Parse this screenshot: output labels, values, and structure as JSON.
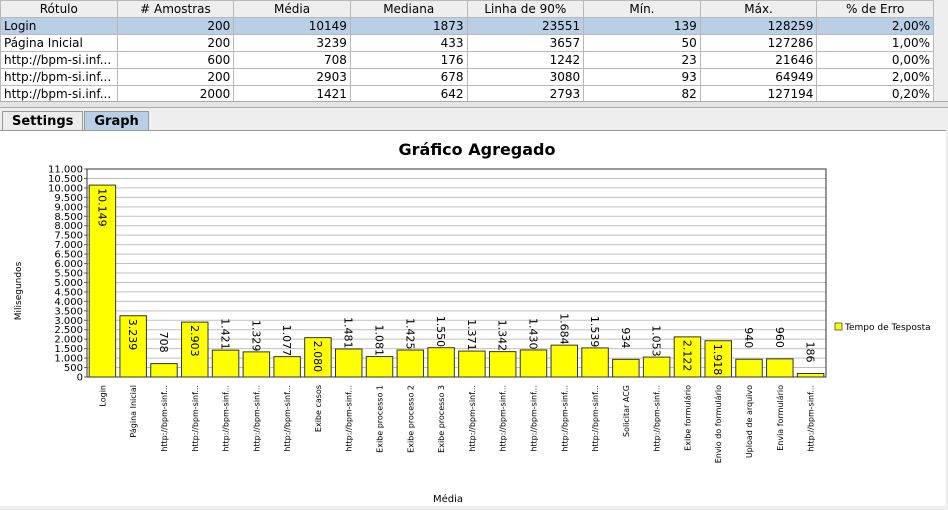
{
  "table": {
    "headers": [
      "Rótulo",
      "# Amostras",
      "Média",
      "Mediana",
      "Linha de 90%",
      "Mín.",
      "Máx.",
      "% de Erro"
    ],
    "rows": [
      [
        "Login",
        200,
        10149,
        1873,
        23551,
        139,
        128259,
        "2,00%"
      ],
      [
        "Página Inicial",
        200,
        3239,
        433,
        3657,
        50,
        127286,
        "1,00%"
      ],
      [
        "http://bpm-si.inf...",
        600,
        708,
        176,
        1242,
        23,
        21646,
        "0,00%"
      ],
      [
        "http://bpm-si.inf...",
        200,
        2903,
        678,
        3080,
        93,
        64949,
        "2,00%"
      ],
      [
        "http://bpm-si.inf...",
        2000,
        1421,
        642,
        2793,
        82,
        127194,
        "0,20%"
      ]
    ]
  },
  "tabs": [
    "Settings",
    "Graph"
  ],
  "chart_data": {
    "type": "bar",
    "title": "Gráfico Agregado",
    "y_label": "Milisegundos",
    "x_label": "Média",
    "categories": [
      "Login",
      "Página Inicial",
      "http://bpm-sinf...",
      "http://bpm-sinf...",
      "http://bpm-sinf...",
      "http://bpm-sinf...",
      "http://bpm-sinf...",
      "Exibe casos",
      "http://bpm-sinf...",
      "Exibe processo 1",
      "Exibe processo 2",
      "Exibe processo 3",
      "http://bpm-sinf...",
      "http://bpm-sinf...",
      "http://bpm-sinf...",
      "http://bpm-sinf...",
      "http://bpm-sinf...",
      "Solicitar ACG",
      "http://bpm-sinf...",
      "Exibe formulário",
      "Envio do formulário",
      "Upload de arquivo",
      "Envia formulário",
      "http://bpm-sinf..."
    ],
    "series": [
      {
        "name": "Tempo de Tesposta",
        "color": "#ffff00",
        "values": [
          10149,
          3239,
          708,
          2903,
          1421,
          1329,
          1077,
          2080,
          1481,
          1081,
          1425,
          1550,
          1371,
          1342,
          1430,
          1684,
          1539,
          934,
          1053,
          2122,
          1918,
          940,
          960,
          186
        ],
        "value_labels": [
          "10.149",
          "3.239",
          "708",
          "2.903",
          "1.421",
          "1.329",
          "1.077",
          "2.080",
          "1.481",
          "1.081",
          "1.425",
          "1.550",
          "1.371",
          "1.342",
          "1.430",
          "1.684",
          "1.539",
          "934",
          "1.053",
          "2.122",
          "1.918",
          "940",
          "960",
          "186"
        ]
      }
    ],
    "ylim": [
      0,
      11000
    ],
    "yticks": [
      0,
      500,
      {
        "value": 1000,
        "label": "1.000"
      },
      {
        "value": 1500,
        "label": "1.500"
      },
      {
        "value": 2000,
        "label": "2.000"
      },
      {
        "value": 2500,
        "label": "2.500"
      },
      {
        "value": 3000,
        "label": "3.000"
      },
      {
        "value": 3500,
        "label": "3.500"
      },
      {
        "value": 4000,
        "label": "4.000"
      },
      {
        "value": 4500,
        "label": "4.500"
      },
      {
        "value": 5000,
        "label": "5.000"
      },
      {
        "value": 5500,
        "label": "5.500"
      },
      {
        "value": 6000,
        "label": "6.000"
      },
      {
        "value": 6500,
        "label": "6.500"
      },
      {
        "value": 7000,
        "label": "7.000"
      },
      {
        "value": 7500,
        "label": "7.500"
      },
      {
        "value": 8000,
        "label": "8.000"
      },
      {
        "value": 8500,
        "label": "8.500"
      },
      {
        "value": 9000,
        "label": "9.000"
      },
      {
        "value": 9500,
        "label": "9.500"
      },
      {
        "value": 10000,
        "label": "10.000"
      },
      {
        "value": 10500,
        "label": "10.500"
      },
      {
        "value": 11000,
        "label": "11.000"
      }
    ],
    "grid": true,
    "legend": "right"
  }
}
